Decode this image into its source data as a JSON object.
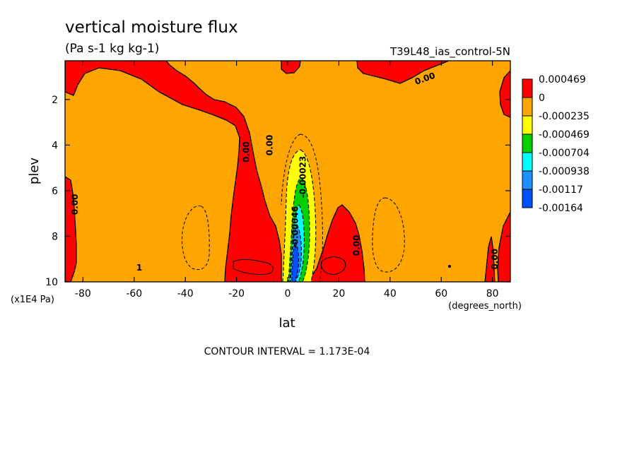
{
  "chart_data": {
    "type": "heatmap",
    "title": "vertical moisture flux",
    "subtitle": "(Pa s-1 kg kg-1)",
    "dataset_label": "T39L48_ias_control-5N",
    "xlabel": "lat",
    "x_units": "(degrees_north)",
    "ylabel": "plev",
    "y_units": "(x1E4 Pa)",
    "xlim": [
      -87,
      87
    ],
    "ylim": [
      10,
      0.3
    ],
    "x_ticks": [
      -80,
      -60,
      -40,
      -20,
      0,
      20,
      40,
      60,
      80
    ],
    "y_ticks": [
      2,
      4,
      6,
      8,
      10
    ],
    "footer": "CONTOUR INTERVAL = 1.173E-04",
    "colorbar": {
      "colors": [
        "#ff0000",
        "#ffa500",
        "#ffff00",
        "#00d000",
        "#00ffff",
        "#1e90ff",
        "#0050ff"
      ],
      "labels": [
        "0.000469",
        "0",
        "-0.000235",
        "-0.000469",
        "-0.000704",
        "-0.000938",
        "-0.00117",
        "-0.00164"
      ]
    },
    "contour_labels": [
      {
        "text": "0.00",
        "lat": 54,
        "plev": 1.2,
        "angle": -20
      },
      {
        "text": "0.00",
        "lat": -15,
        "plev": 4.3,
        "angle": -90
      },
      {
        "text": "0.00",
        "lat": -6,
        "plev": 4.0,
        "angle": -90
      },
      {
        "text": "0.00",
        "lat": -82,
        "plev": 6.6,
        "angle": -90
      },
      {
        "text": "0.00",
        "lat": 28,
        "plev": 8.4,
        "angle": -90
      },
      {
        "text": "0.00",
        "lat": 82,
        "plev": 9.0,
        "angle": -90
      },
      {
        "text": "-0.00023",
        "lat": 7,
        "plev": 5.4,
        "angle": -90
      },
      {
        "text": "-0.00046",
        "lat": 4,
        "plev": 7.6,
        "angle": -90
      },
      {
        "text": "1",
        "lat": -58,
        "plev": 9.5,
        "angle": 0
      }
    ]
  }
}
